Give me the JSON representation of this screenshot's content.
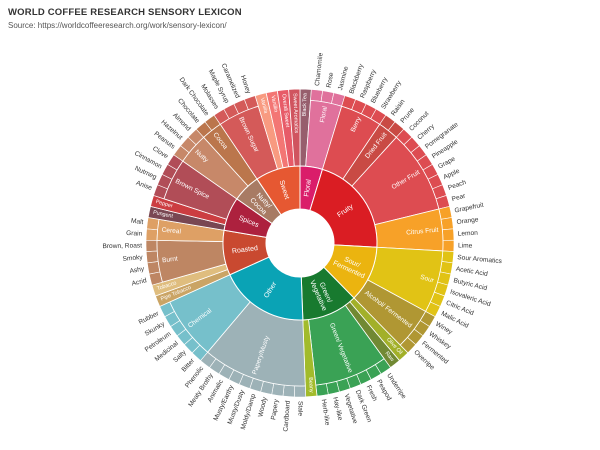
{
  "header": {
    "title": "WORLD COFFEE RESEARCH SENSORY LEXICON",
    "subtitle": "Source: https://worldcoffeeresearch.org/work/sensory-lexicon/"
  },
  "chart_data": {
    "type": "sunburst",
    "title": "WORLD COFFEE RESEARCH SENSORY LEXICON",
    "subtitle": "Source: https://worldcoffeeresearch.org/work/sensory-lexicon/",
    "levels": 3,
    "categories": [
      {
        "name": "Floral",
        "color": "#da1d6a",
        "children": [
          {
            "name": "Black Tea",
            "color": "#975e6d",
            "children": []
          },
          {
            "name": "Floral",
            "color": "#e0719c",
            "children": [
              "Chamomile",
              "Rose",
              "Jasmine"
            ]
          }
        ]
      },
      {
        "name": "Fruity",
        "color": "#da1d23",
        "children": [
          {
            "name": "Berry",
            "color": "#dd4c51",
            "children": [
              "Blackberry",
              "Raspberry",
              "Blueberry",
              "Strawberry"
            ]
          },
          {
            "name": "Dried Fruit",
            "color": "#c94a44",
            "children": [
              "Raisin",
              "Prune"
            ]
          },
          {
            "name": "Other Fruit",
            "color": "#dd4c51",
            "children": [
              "Coconut",
              "Cherry",
              "Pomegranate",
              "Pineapple",
              "Grape",
              "Apple",
              "Peach",
              "Pear"
            ]
          },
          {
            "name": "Citrus Fruit",
            "color": "#f7a128",
            "children": [
              "Grapefruit",
              "Orange",
              "Lemon",
              "Lime"
            ]
          }
        ]
      },
      {
        "name": "Sour/ Fermented",
        "color": "#ebb40f",
        "children": [
          {
            "name": "Sour",
            "color": "#e1c315",
            "children": [
              "Sour Aromatics",
              "Acetic Acid",
              "Butyric Acid",
              "Isovaleric Acid",
              "Citric Acid",
              "Malic Acid"
            ]
          },
          {
            "name": "Alcohol/ Fermented",
            "color": "#b09733",
            "children": [
              "Winey",
              "Whiskey",
              "Fermented",
              "Overripe"
            ]
          }
        ]
      },
      {
        "name": "Green/ Vegetative",
        "color": "#187a2f",
        "children": [
          {
            "name": "Olive Oil",
            "color": "#a2b029",
            "children": []
          },
          {
            "name": "Raw",
            "color": "#718933",
            "children": []
          },
          {
            "name": "Green/ Vegetative",
            "color": "#3aa255",
            "children": [
              "Underripe",
              "Peapod",
              "Fresh",
              "Dark Green",
              "Vegetative",
              "Hay-like",
              "Herb-like"
            ]
          },
          {
            "name": "Beany",
            "color": "#a2bb2b",
            "children": []
          }
        ]
      },
      {
        "name": "Other",
        "color": "#0aa3b5",
        "children": [
          {
            "name": "Papery/Musty",
            "color": "#9db2b7",
            "children": [
              "Stale",
              "Cardboard",
              "Papery",
              "Woody",
              "Moldy/Damp",
              "Musty/Dusty",
              "Musty/Earthy",
              "Animalic",
              "Meaty Brothy",
              "Phenolic"
            ]
          },
          {
            "name": "Chemical",
            "color": "#76c0cb",
            "children": [
              "Bitter",
              "Salty",
              "Medicinal",
              "Petroleum",
              "Skunky",
              "Rubber"
            ]
          }
        ]
      },
      {
        "name": "Roasted",
        "color": "#c94930",
        "children": [
          {
            "name": "Pipe Tobacco",
            "color": "#caa465",
            "children": []
          },
          {
            "name": "Tobacco",
            "color": "#dfbd7e",
            "children": []
          },
          {
            "name": "Burnt",
            "color": "#be8663",
            "children": [
              "Acrid",
              "Ashy",
              "Smoky",
              "Brown, Roast"
            ]
          },
          {
            "name": "Cereal",
            "color": "#dea065",
            "children": [
              "Grain",
              "Malt"
            ]
          }
        ]
      },
      {
        "name": "Spices",
        "color": "#ad213e",
        "children": [
          {
            "name": "Pungent",
            "color": "#794752",
            "children": []
          },
          {
            "name": "Pepper",
            "color": "#cc3d41",
            "children": []
          },
          {
            "name": "Brown Spice",
            "color": "#b14d57",
            "children": [
              "Anise",
              "Nutmeg",
              "Cinnamon",
              "Clove"
            ]
          }
        ]
      },
      {
        "name": "Nutty/ Cocoa",
        "color": "#a87b64",
        "children": [
          {
            "name": "Nutty",
            "color": "#c78869",
            "children": [
              "Peanuts",
              "Hazelnut",
              "Almond"
            ]
          },
          {
            "name": "Cocoa",
            "color": "#bb764c",
            "children": [
              "Chocolate",
              "Dark Chocolate"
            ]
          }
        ]
      },
      {
        "name": "Sweet",
        "color": "#e65832",
        "children": [
          {
            "name": "Brown Sugar",
            "color": "#d45a59",
            "children": [
              "Molasses",
              "Maple Syrup",
              "Caramelized",
              "Honey"
            ]
          },
          {
            "name": "Vanilla",
            "color": "#f89a80",
            "children": []
          },
          {
            "name": "Vanillin",
            "color": "#f37674",
            "children": []
          },
          {
            "name": "Overall Sweet",
            "color": "#e75b68",
            "children": []
          },
          {
            "name": "Sweet Aromatics",
            "color": "#d0545f",
            "children": []
          }
        ]
      }
    ]
  }
}
